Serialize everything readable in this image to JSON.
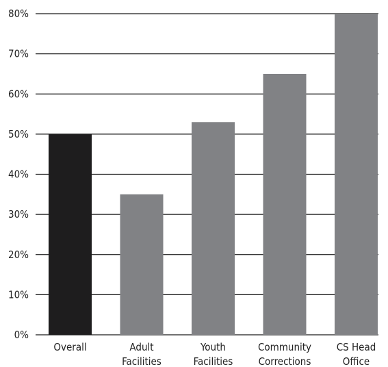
{
  "chart_data": {
    "type": "bar",
    "categories": [
      [
        "Overall"
      ],
      [
        "Adult",
        "Facilities"
      ],
      [
        "Youth",
        "Facilities"
      ],
      [
        "Community",
        "Corrections"
      ],
      [
        "CS Head",
        "Office"
      ]
    ],
    "values": [
      50,
      35,
      53,
      65,
      80
    ],
    "bar_colors": [
      "#1e1d1e",
      "#818285",
      "#818285",
      "#818285",
      "#818285"
    ],
    "ylim": [
      0,
      80
    ],
    "yticks": [
      "0%",
      "10%",
      "20%",
      "30%",
      "40%",
      "50%",
      "60%",
      "70%",
      "80%"
    ],
    "grid": true,
    "title": "",
    "xlabel": "",
    "ylabel": ""
  }
}
